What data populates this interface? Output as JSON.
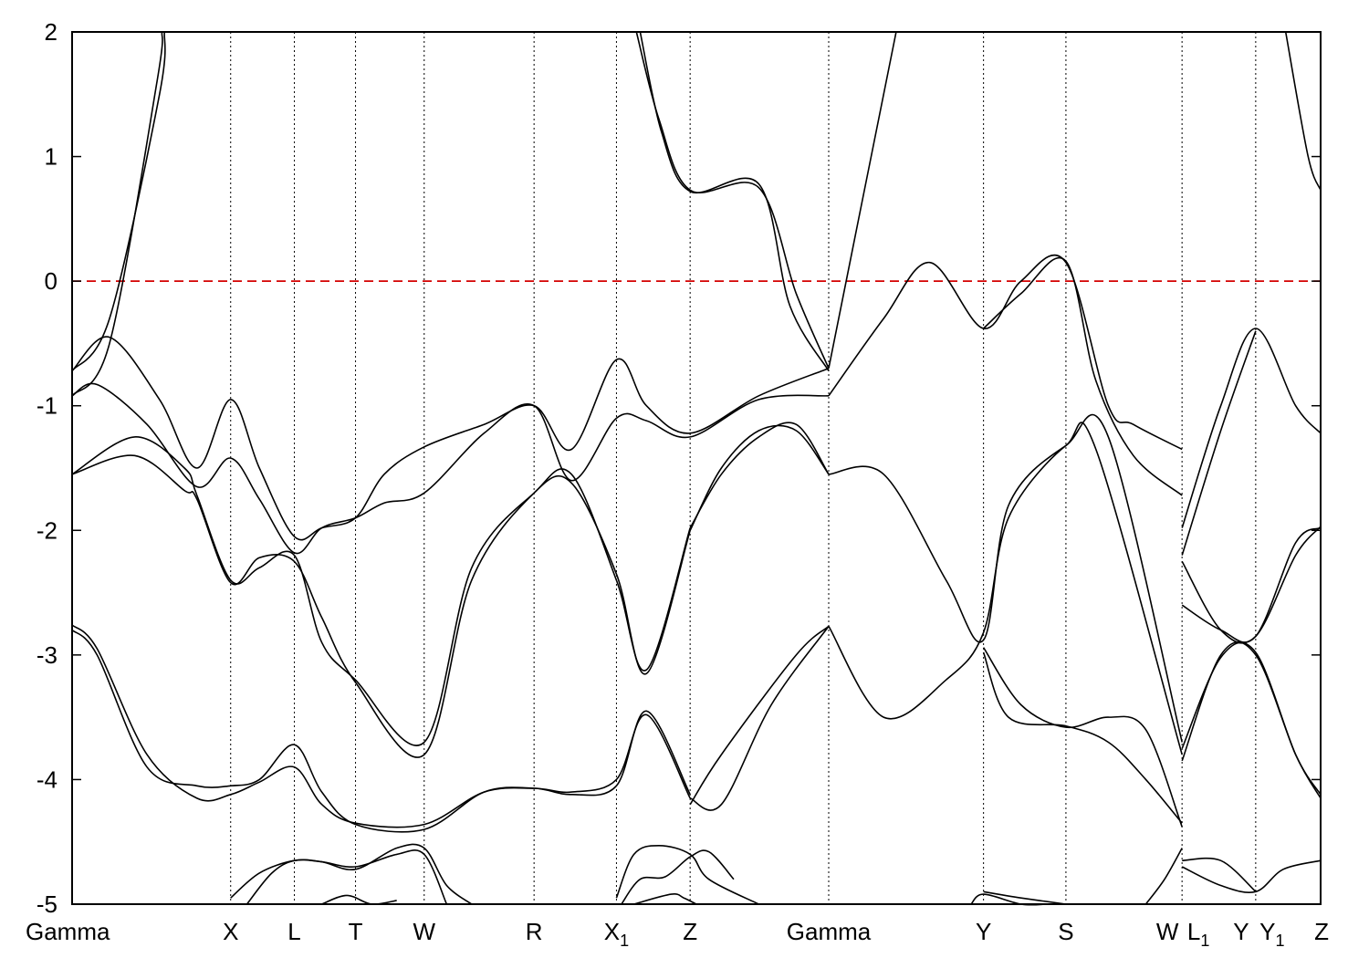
{
  "chart_data": {
    "type": "line",
    "title": "",
    "xlabel": "",
    "ylabel": "",
    "ylim": [
      -5,
      2
    ],
    "yticks": [
      "2",
      "1",
      "0",
      "-1",
      "-2",
      "-3",
      "-4",
      "-5"
    ],
    "ytick_values": [
      2,
      1,
      0,
      -1,
      -2,
      -3,
      -4,
      -5
    ],
    "xlim": [
      0,
      1
    ],
    "kpoints": [
      {
        "label": "Gamma",
        "sub": "",
        "x": 0.0
      },
      {
        "label": "X",
        "sub": "",
        "x": 0.127
      },
      {
        "label": "L",
        "sub": "",
        "x": 0.178
      },
      {
        "label": "T",
        "sub": "",
        "x": 0.227
      },
      {
        "label": "W",
        "sub": "",
        "x": 0.282
      },
      {
        "label": "R",
        "sub": "",
        "x": 0.37
      },
      {
        "label": "X",
        "sub": "1",
        "x": 0.436
      },
      {
        "label": "Z",
        "sub": "",
        "x": 0.495
      },
      {
        "label": "Gamma",
        "sub": "",
        "x": 0.606
      },
      {
        "label": "Y",
        "sub": "",
        "x": 0.73
      },
      {
        "label": "S",
        "sub": "",
        "x": 0.796
      },
      {
        "label": "W",
        "sub": "",
        "x": 0.889
      },
      {
        "label": "L",
        "sub": "1",
        "x": 0.889
      },
      {
        "label": "Y",
        "sub": "",
        "x": 0.948
      },
      {
        "label": "Y",
        "sub": "1",
        "x": 0.948
      },
      {
        "label": "Z",
        "sub": "",
        "x": 1.0
      }
    ],
    "vertical_lines": [
      0.127,
      0.178,
      0.227,
      0.282,
      0.37,
      0.436,
      0.495,
      0.606,
      0.73,
      0.796,
      0.889,
      0.948
    ],
    "fermi_level": 0,
    "fermi_color": "#d40000",
    "line_color": "#000000",
    "series": [
      {
        "x": [
          0.0,
          0.03,
          0.07,
          0.074
        ],
        "y": [
          -0.72,
          -0.3,
          1.5,
          2.0
        ]
      },
      {
        "x": [
          0.0,
          0.03,
          0.068,
          0.072
        ],
        "y": [
          -0.92,
          -0.5,
          1.6,
          2.0
        ]
      },
      {
        "x": [
          0.0,
          0.03,
          0.07,
          0.1,
          0.127,
          0.15,
          0.178,
          0.2,
          0.227,
          0.25,
          0.282,
          0.33,
          0.37,
          0.4,
          0.436,
          0.46,
          0.495,
          0.55,
          0.606
        ],
        "y": [
          -0.72,
          -0.45,
          -0.95,
          -1.5,
          -0.95,
          -1.5,
          -2.05,
          -1.98,
          -1.9,
          -1.55,
          -1.33,
          -1.15,
          -1.0,
          -1.35,
          -0.63,
          -1.0,
          -1.22,
          -0.92,
          -0.7
        ]
      },
      {
        "x": [
          0.0,
          0.02,
          0.06,
          0.1,
          0.127,
          0.15,
          0.178,
          0.2,
          0.227,
          0.25,
          0.282,
          0.33,
          0.37,
          0.4,
          0.436,
          0.46,
          0.495,
          0.55,
          0.606
        ],
        "y": [
          -0.92,
          -0.83,
          -1.15,
          -1.65,
          -1.42,
          -1.75,
          -2.18,
          -1.98,
          -1.9,
          -1.78,
          -1.7,
          -1.22,
          -1.0,
          -1.6,
          -1.1,
          -1.12,
          -1.25,
          -0.95,
          -0.92
        ]
      },
      {
        "x": [
          0.0,
          0.05,
          0.09,
          0.1,
          0.127,
          0.15,
          0.178,
          0.2,
          0.227,
          0.282,
          0.32,
          0.37,
          0.4,
          0.436,
          0.46,
          0.495
        ],
        "y": [
          -1.55,
          -1.25,
          -1.5,
          -1.72,
          -2.4,
          -2.3,
          -2.2,
          -2.9,
          -3.2,
          -3.7,
          -2.3,
          -1.7,
          -1.55,
          -2.4,
          -3.12,
          -1.98
        ]
      },
      {
        "x": [
          0.0,
          0.05,
          0.09,
          0.1,
          0.127,
          0.15,
          0.178,
          0.2,
          0.227,
          0.282,
          0.32,
          0.37,
          0.4,
          0.436,
          0.46,
          0.495
        ],
        "y": [
          -1.55,
          -1.4,
          -1.68,
          -1.75,
          -2.42,
          -2.22,
          -2.25,
          -2.7,
          -3.22,
          -3.8,
          -2.4,
          -1.7,
          -1.62,
          -2.35,
          -3.15,
          -2.0
        ]
      },
      {
        "x": [
          0.0,
          0.02,
          0.06,
          0.1,
          0.127,
          0.15,
          0.178,
          0.2,
          0.227,
          0.282,
          0.33,
          0.37,
          0.4,
          0.436,
          0.46,
          0.495
        ],
        "y": [
          -2.76,
          -2.95,
          -3.8,
          -4.15,
          -4.12,
          -4.02,
          -3.9,
          -4.2,
          -4.35,
          -4.36,
          -4.1,
          -4.07,
          -4.1,
          -4.0,
          -3.48,
          -4.15
        ]
      },
      {
        "x": [
          0.0,
          0.02,
          0.06,
          0.1,
          0.127,
          0.15,
          0.178,
          0.2,
          0.227,
          0.282,
          0.33,
          0.37,
          0.4,
          0.436,
          0.46,
          0.495
        ],
        "y": [
          -2.8,
          -3.0,
          -3.9,
          -4.05,
          -4.05,
          -4.0,
          -3.72,
          -4.1,
          -4.36,
          -4.4,
          -4.1,
          -4.07,
          -4.12,
          -4.05,
          -3.45,
          -4.12
        ]
      },
      {
        "x": [
          0.127,
          0.15,
          0.178,
          0.2,
          0.227,
          0.26,
          0.282,
          0.3,
          0.32
        ],
        "y": [
          -4.95,
          -4.75,
          -4.65,
          -4.66,
          -4.72,
          -4.55,
          -4.55,
          -4.85,
          -5.0
        ]
      },
      {
        "x": [
          0.14,
          0.16,
          0.178,
          0.2,
          0.227,
          0.26,
          0.282,
          0.3
        ],
        "y": [
          -5.0,
          -4.75,
          -4.65,
          -4.66,
          -4.7,
          -4.6,
          -4.6,
          -5.0
        ]
      },
      {
        "x": [
          0.2,
          0.22,
          0.24,
          0.26
        ],
        "y": [
          -5.0,
          -4.93,
          -5.0,
          -4.97
        ]
      },
      {
        "x": [
          0.436,
          0.45,
          0.47,
          0.495,
          0.51,
          0.55
        ],
        "y": [
          -4.95,
          -4.6,
          -4.53,
          -4.6,
          -4.8,
          -5.0
        ]
      },
      {
        "x": [
          0.44,
          0.455,
          0.475,
          0.495,
          0.51,
          0.53
        ],
        "y": [
          -5.0,
          -4.8,
          -4.78,
          -4.62,
          -4.58,
          -4.8
        ]
      },
      {
        "x": [
          0.45,
          0.48,
          0.49,
          0.5
        ],
        "y": [
          -5.0,
          -4.92,
          -4.95,
          -5.0
        ]
      },
      {
        "x": [
          0.452,
          0.47,
          0.495,
          0.55,
          0.58,
          0.606
        ],
        "y": [
          2.0,
          1.3,
          0.73,
          0.75,
          -0.1,
          -0.7
        ]
      },
      {
        "x": [
          0.455,
          0.472,
          0.495,
          0.55,
          0.575,
          0.606
        ],
        "y": [
          2.0,
          1.2,
          0.72,
          0.78,
          -0.2,
          -0.72
        ]
      },
      {
        "x": [
          0.495,
          0.52,
          0.55,
          0.58,
          0.606
        ],
        "y": [
          -2.0,
          -1.5,
          -1.2,
          -1.2,
          -1.55
        ]
      },
      {
        "x": [
          0.495,
          0.52,
          0.55,
          0.58,
          0.606
        ],
        "y": [
          -1.98,
          -1.55,
          -1.25,
          -1.15,
          -1.55
        ]
      },
      {
        "x": [
          0.495,
          0.52,
          0.56,
          0.606
        ],
        "y": [
          -4.15,
          -4.2,
          -3.4,
          -2.77
        ]
      },
      {
        "x": [
          0.495,
          0.52,
          0.58,
          0.606
        ],
        "y": [
          -4.2,
          -3.8,
          -3.0,
          -2.77
        ]
      },
      {
        "x": [
          0.606,
          0.63,
          0.66
        ],
        "y": [
          -0.7,
          0.5,
          2.0
        ]
      },
      {
        "x": [
          0.606,
          0.65,
          0.687,
          0.73,
          0.76,
          0.796,
          0.83,
          0.85,
          0.889
        ],
        "y": [
          -0.92,
          -0.3,
          0.15,
          -0.38,
          0.0,
          0.15,
          -1.0,
          -1.15,
          -1.35
        ]
      },
      {
        "x": [
          0.73,
          0.76,
          0.796,
          0.82,
          0.85,
          0.889
        ],
        "y": [
          -0.38,
          -0.1,
          0.16,
          -0.8,
          -1.4,
          -1.72
        ]
      },
      {
        "x": [
          0.606,
          0.65,
          0.7,
          0.73,
          0.75,
          0.796,
          0.83,
          0.889
        ],
        "y": [
          -1.55,
          -1.55,
          -2.4,
          -2.88,
          -1.8,
          -1.32,
          -1.25,
          -3.7
        ]
      },
      {
        "x": [
          0.606,
          0.65,
          0.7,
          0.73,
          0.75,
          0.796,
          0.82,
          0.889
        ],
        "y": [
          -2.77,
          -3.5,
          -3.2,
          -2.82,
          -1.9,
          -1.32,
          -1.35,
          -3.8
        ]
      },
      {
        "x": [
          0.73,
          0.76,
          0.796,
          0.83,
          0.86,
          0.889
        ],
        "y": [
          -2.94,
          -3.4,
          -3.58,
          -3.5,
          -3.6,
          -4.38
        ]
      },
      {
        "x": [
          0.73,
          0.75,
          0.796,
          0.83,
          0.86,
          0.889
        ],
        "y": [
          -2.98,
          -3.5,
          -3.57,
          -3.7,
          -4.0,
          -4.35
        ]
      },
      {
        "x": [
          0.73,
          0.76,
          0.796
        ],
        "y": [
          -4.9,
          -4.95,
          -5.0
        ]
      },
      {
        "x": [
          0.72,
          0.73,
          0.76,
          0.78
        ],
        "y": [
          -5.0,
          -4.92,
          -5.0,
          -5.0
        ]
      },
      {
        "x": [
          0.86,
          0.875,
          0.889
        ],
        "y": [
          -5.0,
          -4.8,
          -4.55
        ]
      },
      {
        "x": [
          0.889,
          0.92,
          0.948
        ],
        "y": [
          -4.65,
          -4.65,
          -4.9
        ]
      },
      {
        "x": [
          0.889,
          0.92,
          0.948,
          0.97,
          1.0
        ],
        "y": [
          -4.7,
          -4.85,
          -4.9,
          -4.72,
          -4.65
        ]
      },
      {
        "x": [
          0.889,
          0.92,
          0.948,
          0.98,
          1.0
        ],
        "y": [
          -1.98,
          -1.0,
          -0.38,
          -1.0,
          -1.22
        ]
      },
      {
        "x": [
          0.889,
          0.92,
          0.948
        ],
        "y": [
          -2.2,
          -1.2,
          -0.4
        ]
      },
      {
        "x": [
          0.889,
          0.92,
          0.948,
          0.98,
          1.0
        ],
        "y": [
          -2.25,
          -2.8,
          -2.85,
          -2.2,
          -1.97
        ]
      },
      {
        "x": [
          0.889,
          0.92,
          0.948,
          0.98,
          1.0
        ],
        "y": [
          -2.6,
          -2.8,
          -2.85,
          -2.1,
          -1.98
        ]
      },
      {
        "x": [
          0.889,
          0.92,
          0.948,
          0.98,
          1.0
        ],
        "y": [
          -3.85,
          -3.0,
          -3.0,
          -3.8,
          -4.15
        ]
      },
      {
        "x": [
          0.889,
          0.92,
          0.948,
          0.98,
          1.0
        ],
        "y": [
          -3.75,
          -3.02,
          -2.98,
          -3.8,
          -4.12
        ]
      },
      {
        "x": [
          0.972,
          0.99,
          1.0
        ],
        "y": [
          2.0,
          1.0,
          0.73
        ]
      }
    ]
  }
}
